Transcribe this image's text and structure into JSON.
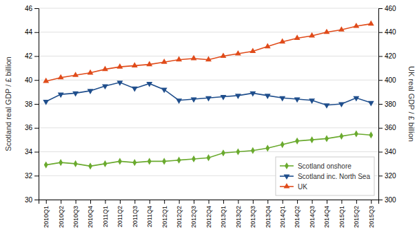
{
  "chart_data": {
    "type": "line",
    "categories": [
      "2010Q1",
      "2010Q2",
      "2010Q3",
      "2010Q4",
      "2011Q1",
      "2011Q2",
      "2011Q3",
      "2011Q4",
      "2012Q1",
      "2012Q2",
      "2012Q3",
      "2012Q4",
      "2013Q1",
      "2013Q2",
      "2013Q3",
      "2013Q4",
      "2014Q1",
      "2014Q2",
      "2014Q3",
      "2014Q4",
      "2015Q1",
      "2015Q2",
      "2015Q3"
    ],
    "series": [
      {
        "name": "Scotland onshore",
        "color": "#6aaa2e",
        "marker": "diamond",
        "values": [
          32.9,
          33.1,
          33.0,
          32.8,
          33.0,
          33.2,
          33.1,
          33.2,
          33.2,
          33.3,
          33.4,
          33.5,
          33.9,
          34.0,
          34.1,
          34.3,
          34.6,
          34.9,
          35.0,
          35.1,
          35.3,
          35.5,
          35.4
        ]
      },
      {
        "name": "Scotland inc. North Sea",
        "color": "#1f4e8c",
        "marker": "triangle-down",
        "values": [
          38.2,
          38.8,
          38.9,
          39.1,
          39.5,
          39.8,
          39.3,
          39.7,
          39.2,
          38.3,
          38.4,
          38.5,
          38.6,
          38.7,
          38.9,
          38.7,
          38.5,
          38.4,
          38.3,
          37.9,
          38.0,
          38.5,
          38.1
        ]
      },
      {
        "name": "UK",
        "color": "#e04b1a",
        "marker": "triangle-up",
        "axis": "y2",
        "values": [
          399,
          402,
          404,
          406,
          409,
          411,
          412,
          413,
          415,
          417,
          418,
          417,
          420,
          422,
          424,
          428,
          432,
          435,
          437,
          440,
          442,
          445,
          447
        ]
      }
    ],
    "ylabel": "Scotland real GDP / £ billion",
    "y2label": "UK real GDP / £ billion",
    "ylim": [
      30,
      46
    ],
    "yticks": [
      30,
      32,
      34,
      36,
      38,
      40,
      42,
      44,
      46
    ],
    "y2lim": [
      300,
      460
    ],
    "y2ticks": [
      300,
      320,
      340,
      360,
      380,
      400,
      420,
      440,
      460
    ],
    "grid": true,
    "legend": "lower right"
  }
}
